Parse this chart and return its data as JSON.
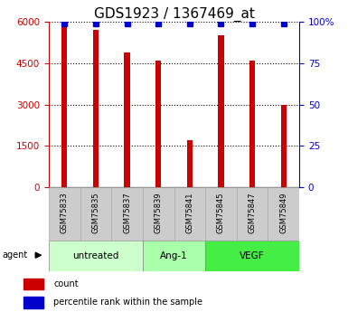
{
  "title": "GDS1923 / 1367469_at",
  "samples": [
    "GSM75833",
    "GSM75835",
    "GSM75837",
    "GSM75839",
    "GSM75841",
    "GSM75845",
    "GSM75847",
    "GSM75849"
  ],
  "counts": [
    5850,
    5700,
    4900,
    4600,
    1700,
    5500,
    4600,
    3000
  ],
  "percentile_ranks": [
    99,
    99,
    99,
    99,
    99,
    99,
    99,
    99
  ],
  "bar_color": "#cc0000",
  "dot_color": "#0000cc",
  "left_ylim": [
    0,
    6000
  ],
  "left_yticks": [
    0,
    1500,
    3000,
    4500,
    6000
  ],
  "right_ylim": [
    0,
    100
  ],
  "right_yticks": [
    0,
    25,
    50,
    75,
    100
  ],
  "right_yticklabels": [
    "0",
    "25",
    "50",
    "75",
    "100%"
  ],
  "groups": [
    {
      "label": "untreated",
      "indices": [
        0,
        1,
        2
      ],
      "color": "#ccffcc"
    },
    {
      "label": "Ang-1",
      "indices": [
        3,
        4
      ],
      "color": "#aaffaa"
    },
    {
      "label": "VEGF",
      "indices": [
        5,
        6,
        7
      ],
      "color": "#44ee44"
    }
  ],
  "agent_label": "agent",
  "legend_count_label": "count",
  "legend_percentile_label": "percentile rank within the sample",
  "title_fontsize": 11,
  "axis_label_color_left": "#cc0000",
  "axis_label_color_right": "#0000cc",
  "sample_box_color": "#cccccc"
}
